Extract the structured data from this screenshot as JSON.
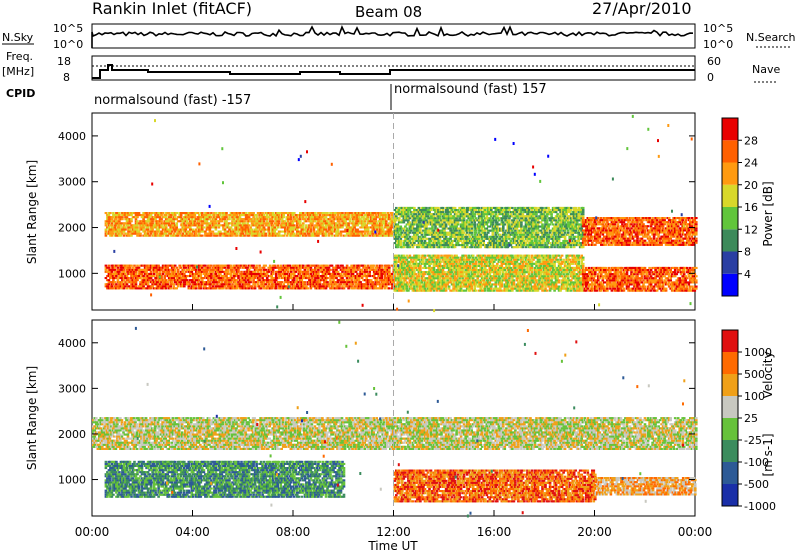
{
  "header": {
    "station": "Rankin Inlet (fitACF)",
    "beam": "Beam 08",
    "date": "27/Apr/2010"
  },
  "top_panels": {
    "nsky_label": "N.Sky",
    "nsearch_label": "N.Search",
    "power_ticks": [
      "10^5",
      "10^0"
    ],
    "freq_label": "Freq.",
    "freq_unit": "[MHz]",
    "freq_ticks": [
      "18",
      "8"
    ],
    "nave_label": "Nave",
    "nave_ticks": [
      "60",
      "0"
    ],
    "cpid_label": "CPID",
    "cpid_segments": [
      "normalsound (fast) -157",
      "normalsound (fast) 157"
    ]
  },
  "colors": {
    "power_scale": [
      "#0000ff",
      "#2a3fa3",
      "#3c8a5a",
      "#61c53b",
      "#d8d82a",
      "#ff9a10",
      "#ff6000",
      "#e80000"
    ],
    "velocity_scale": [
      "#1a2fa8",
      "#2d5a96",
      "#3b8c5e",
      "#66c23a",
      "#c8c8c0",
      "#f0a018",
      "#ff6a00",
      "#e01010"
    ]
  },
  "chart_data": [
    {
      "type": "heatmap",
      "title": "Power",
      "xlabel": "",
      "ylabel": "Slant Range [km]",
      "x_ticks": [
        "00:00",
        "04:00",
        "08:00",
        "12:00",
        "16:00",
        "20:00",
        "00:00"
      ],
      "y_ticks": [
        1000,
        2000,
        3000,
        4000
      ],
      "ylim": [
        200,
        4500
      ],
      "colorbar": {
        "label": "Power [dB]",
        "ticks": [
          4,
          8,
          12,
          16,
          20,
          24,
          28
        ]
      },
      "bands": [
        {
          "t_start": 0.5,
          "t_end": 12.0,
          "r_center": 2050,
          "r_half": 250,
          "level": 5
        },
        {
          "t_start": 0.5,
          "t_end": 12.0,
          "r_center": 900,
          "r_half": 250,
          "level": 6
        },
        {
          "t_start": 12.0,
          "t_end": 19.5,
          "r_center": 2000,
          "r_half": 450,
          "level": 3
        },
        {
          "t_start": 12.0,
          "t_end": 19.5,
          "r_center": 1000,
          "r_half": 400,
          "level": 4
        },
        {
          "t_start": 19.5,
          "t_end": 24.0,
          "r_center": 1900,
          "r_half": 300,
          "level": 6
        },
        {
          "t_start": 19.5,
          "t_end": 24.0,
          "r_center": 850,
          "r_half": 250,
          "level": 6
        }
      ]
    },
    {
      "type": "heatmap",
      "title": "Velocity",
      "xlabel": "Time UT",
      "ylabel": "Slant Range [km]",
      "x_ticks": [
        "00:00",
        "04:00",
        "08:00",
        "12:00",
        "16:00",
        "20:00",
        "00:00"
      ],
      "y_ticks": [
        1000,
        2000,
        3000,
        4000
      ],
      "ylim": [
        200,
        4500
      ],
      "colorbar": {
        "label": "Velocity",
        "unit_label": "[m s-1]",
        "ticks": [
          1000,
          500,
          100,
          25,
          -25,
          -100,
          -500,
          -1000
        ]
      },
      "bands": [
        {
          "t_start": 0.0,
          "t_end": 24.0,
          "r_center": 2000,
          "r_half": 350,
          "level": 4
        },
        {
          "t_start": 0.5,
          "t_end": 10.0,
          "r_center": 1000,
          "r_half": 400,
          "level": 2
        },
        {
          "t_start": 12.0,
          "t_end": 20.0,
          "r_center": 850,
          "r_half": 350,
          "level": 6
        },
        {
          "t_start": 20.0,
          "t_end": 24.0,
          "r_center": 850,
          "r_half": 200,
          "level": 5
        }
      ]
    }
  ]
}
